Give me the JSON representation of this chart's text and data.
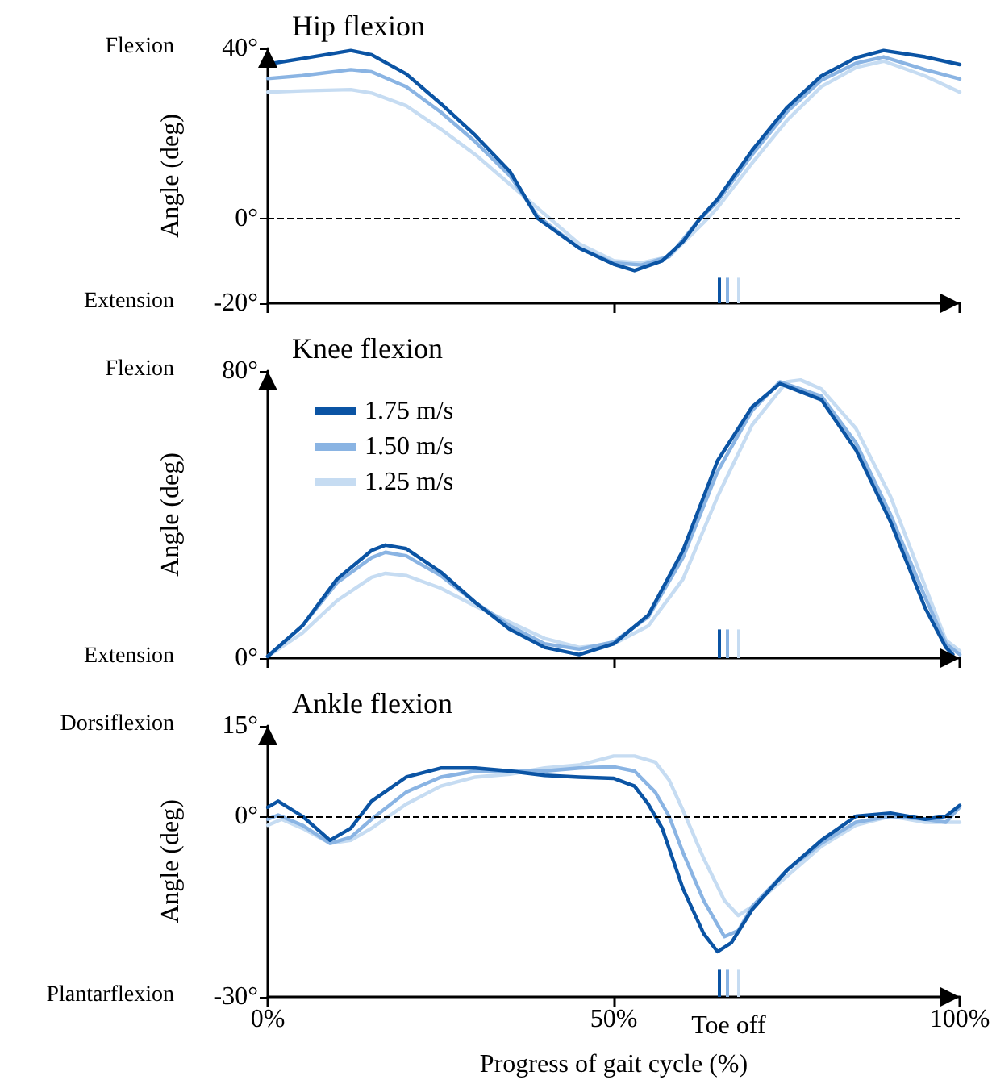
{
  "chart_data": [
    {
      "type": "line",
      "title": "Hip flexion",
      "ylabel": "Angle (deg)",
      "annotations": [
        "Flexion",
        "Extension"
      ],
      "xlim": [
        0,
        100
      ],
      "xticks": [
        {
          "value": 0,
          "label": null
        },
        {
          "value": 50,
          "label": null
        },
        {
          "value": 100,
          "label": null
        }
      ],
      "tick_labels": "y",
      "ylim": [
        -20,
        40
      ],
      "yticks": [
        {
          "value": -20,
          "label": "-20°"
        },
        {
          "value": 0,
          "label": "0°"
        },
        {
          "value": 40,
          "label": "40°"
        }
      ],
      "grid": false,
      "legend": false,
      "marker": "none",
      "line_style": "solid",
      "ref_lines": [
        {
          "axis": "y",
          "value": 0,
          "color": "#000000",
          "line_style": "dashed"
        },
        {
          "axis": "x",
          "value": 65.1,
          "color": "#0b54a4"
        },
        {
          "axis": "x",
          "value": 66.4,
          "color": "#8ab4e3"
        },
        {
          "axis": "x",
          "value": 68.1,
          "color": "#c6dcf2"
        }
      ],
      "series": [
        {
          "color": "#c6dcf2",
          "x": [
            0,
            5,
            12,
            15,
            20,
            25,
            30,
            35,
            40,
            45,
            50,
            54,
            58,
            63,
            65,
            70,
            75,
            80,
            85,
            89,
            95,
            100
          ],
          "values": [
            29.7,
            30,
            30.3,
            29.5,
            26.5,
            21,
            15,
            8,
            1,
            -6,
            -10,
            -10.5,
            -9,
            -1,
            2.5,
            13,
            23,
            31,
            35.5,
            37,
            33.5,
            29.7
          ]
        },
        {
          "color": "#8ab4e3",
          "x": [
            0,
            5,
            12,
            15,
            20,
            25,
            30,
            35,
            39,
            45,
            50,
            54,
            58,
            62,
            65,
            70,
            75,
            80,
            85,
            89,
            95,
            100
          ],
          "values": [
            32.9,
            33.6,
            35,
            34.5,
            31,
            25,
            18,
            10,
            0.5,
            -7,
            -10.5,
            -11,
            -9,
            -1,
            4,
            15,
            25,
            32.5,
            36.5,
            38,
            35,
            32.8
          ]
        },
        {
          "color": "#0b54a4",
          "x": [
            0,
            5,
            12,
            15,
            20,
            25,
            30,
            35,
            39,
            45,
            50,
            53,
            57,
            60,
            62.5,
            65,
            70,
            75,
            80,
            85,
            89,
            95,
            100
          ],
          "values": [
            36.3,
            37.6,
            39.5,
            38.5,
            34,
            27,
            19.5,
            11,
            0,
            -7,
            -10.8,
            -12.3,
            -10,
            -5.5,
            0,
            4.5,
            16,
            26,
            33.5,
            37.8,
            39.5,
            38,
            36.2
          ]
        }
      ]
    },
    {
      "type": "line",
      "title": "Knee flexion",
      "ylabel": "Angle (deg)",
      "annotations": [
        "Flexion",
        "Extension"
      ],
      "xlim": [
        0,
        100
      ],
      "xticks": [
        {
          "value": 0,
          "label": null
        },
        {
          "value": 50,
          "label": null
        },
        {
          "value": 100,
          "label": null
        }
      ],
      "tick_labels": "y",
      "ylim": [
        0,
        80
      ],
      "yticks": [
        {
          "value": 0,
          "label": "0°"
        },
        {
          "value": 80,
          "label": "80°"
        }
      ],
      "grid": false,
      "legend": "top left",
      "marker": "none",
      "line_style": "solid",
      "ref_lines": [
        {
          "axis": "x",
          "value": 65.1,
          "color": "#0b54a4"
        },
        {
          "axis": "x",
          "value": 66.4,
          "color": "#8ab4e3"
        },
        {
          "axis": "x",
          "value": 68.1,
          "color": "#c6dcf2"
        }
      ],
      "series": [
        {
          "name": "1.25 m/s",
          "color": "#c6dcf2",
          "x": [
            0,
            5,
            10,
            15,
            17,
            20,
            25,
            30,
            35,
            40,
            45,
            50,
            55,
            60,
            65,
            70,
            75,
            77,
            80,
            85,
            90,
            95,
            98,
            100
          ],
          "values": [
            0.5,
            7,
            16,
            22.5,
            23.6,
            23,
            19.5,
            14.5,
            10,
            5.5,
            3,
            4,
            9,
            22,
            45,
            65,
            77,
            77.5,
            75,
            64,
            45,
            20,
            5,
            2
          ]
        },
        {
          "name": "1.50 m/s",
          "color": "#8ab4e3",
          "x": [
            0,
            5,
            10,
            15,
            17,
            20,
            25,
            30,
            35,
            40,
            45,
            50,
            55,
            60,
            65,
            70,
            74,
            80,
            85,
            90,
            95,
            98,
            100
          ],
          "values": [
            0.5,
            9,
            21,
            28,
            29.5,
            28.5,
            23,
            15.5,
            9,
            4,
            2.5,
            4.5,
            11.5,
            28,
            52,
            69,
            77,
            73,
            60,
            40,
            17,
            4,
            1
          ]
        },
        {
          "name": "1.75 m/s",
          "color": "#0b54a4",
          "x": [
            0,
            5,
            10,
            15,
            17,
            20,
            25,
            30,
            35,
            40,
            45,
            50,
            55,
            60,
            65,
            70,
            74,
            80,
            85,
            90,
            95,
            98,
            99
          ],
          "values": [
            0.5,
            9,
            22,
            30,
            31.5,
            30.5,
            24,
            15.5,
            8,
            3,
            1,
            4,
            12,
            30,
            55,
            70,
            76.5,
            72,
            58,
            38,
            14,
            3,
            1
          ]
        }
      ]
    },
    {
      "type": "line",
      "title": "Ankle flexion",
      "xlabel": "Progress of gait cycle (%)",
      "ylabel": "Angle (deg)",
      "annotations": [
        "Dorsiflexion",
        "Plantarflexion",
        "Toe off"
      ],
      "xlim": [
        0,
        100
      ],
      "xticks": [
        {
          "value": 0,
          "label": "0%"
        },
        {
          "value": 50,
          "label": "50%"
        },
        {
          "value": 100,
          "label": "100%"
        }
      ],
      "ylim": [
        -30,
        15
      ],
      "yticks": [
        {
          "value": -30,
          "label": "-30°"
        },
        {
          "value": 0,
          "label": "0°"
        },
        {
          "value": 15,
          "label": "15°"
        }
      ],
      "grid": false,
      "legend": false,
      "marker": "none",
      "line_style": "solid",
      "ref_lines": [
        {
          "axis": "y",
          "value": 0,
          "color": "#000000",
          "line_style": "dashed"
        },
        {
          "axis": "x",
          "value": 65.1,
          "color": "#0b54a4"
        },
        {
          "axis": "x",
          "value": 66.4,
          "color": "#8ab4e3"
        },
        {
          "axis": "x",
          "value": 68.1,
          "color": "#c6dcf2"
        }
      ],
      "series": [
        {
          "color": "#c6dcf2",
          "x": [
            0,
            2,
            5,
            9,
            12,
            15,
            20,
            25,
            30,
            35,
            40,
            45,
            50,
            53,
            56,
            58,
            60,
            63,
            66,
            68,
            70,
            75,
            80,
            85,
            90,
            95,
            100
          ],
          "values": [
            -1.5,
            -0.5,
            -2,
            -4.5,
            -4,
            -2,
            2,
            5,
            6.5,
            7,
            8,
            8.5,
            10,
            10,
            9,
            6,
            1,
            -7,
            -14,
            -16.5,
            -15,
            -10,
            -5,
            -1.5,
            0,
            -1,
            -1
          ]
        },
        {
          "color": "#8ab4e3",
          "x": [
            0,
            1.5,
            5,
            9,
            12,
            15,
            20,
            25,
            30,
            35,
            40,
            45,
            50,
            53,
            56,
            58,
            60,
            63,
            66,
            68,
            70,
            75,
            80,
            85,
            90,
            95,
            98,
            100
          ],
          "values": [
            -0.5,
            0.2,
            -1.5,
            -4.5,
            -3.5,
            -0.5,
            4,
            6.5,
            7.5,
            7.5,
            7.5,
            8,
            8.2,
            7.5,
            4,
            0,
            -6,
            -14,
            -20,
            -19,
            -15,
            -9,
            -4.5,
            -1,
            0,
            -0.5,
            -1,
            1.5
          ]
        },
        {
          "color": "#0b54a4",
          "x": [
            0,
            1.5,
            5,
            9,
            12,
            15,
            20,
            25,
            30,
            35,
            40,
            45,
            50,
            53,
            55,
            57,
            60,
            63,
            65,
            67,
            70,
            75,
            80,
            85,
            90,
            95,
            98,
            100
          ],
          "values": [
            1.5,
            2.5,
            0,
            -4,
            -2,
            2.5,
            6.5,
            8,
            8,
            7.5,
            6.8,
            6.5,
            6.3,
            5,
            2,
            -2,
            -12,
            -19.5,
            -22.5,
            -21,
            -15.5,
            -9,
            -4,
            0,
            0.5,
            -0.5,
            0,
            1.8
          ]
        }
      ]
    }
  ]
}
